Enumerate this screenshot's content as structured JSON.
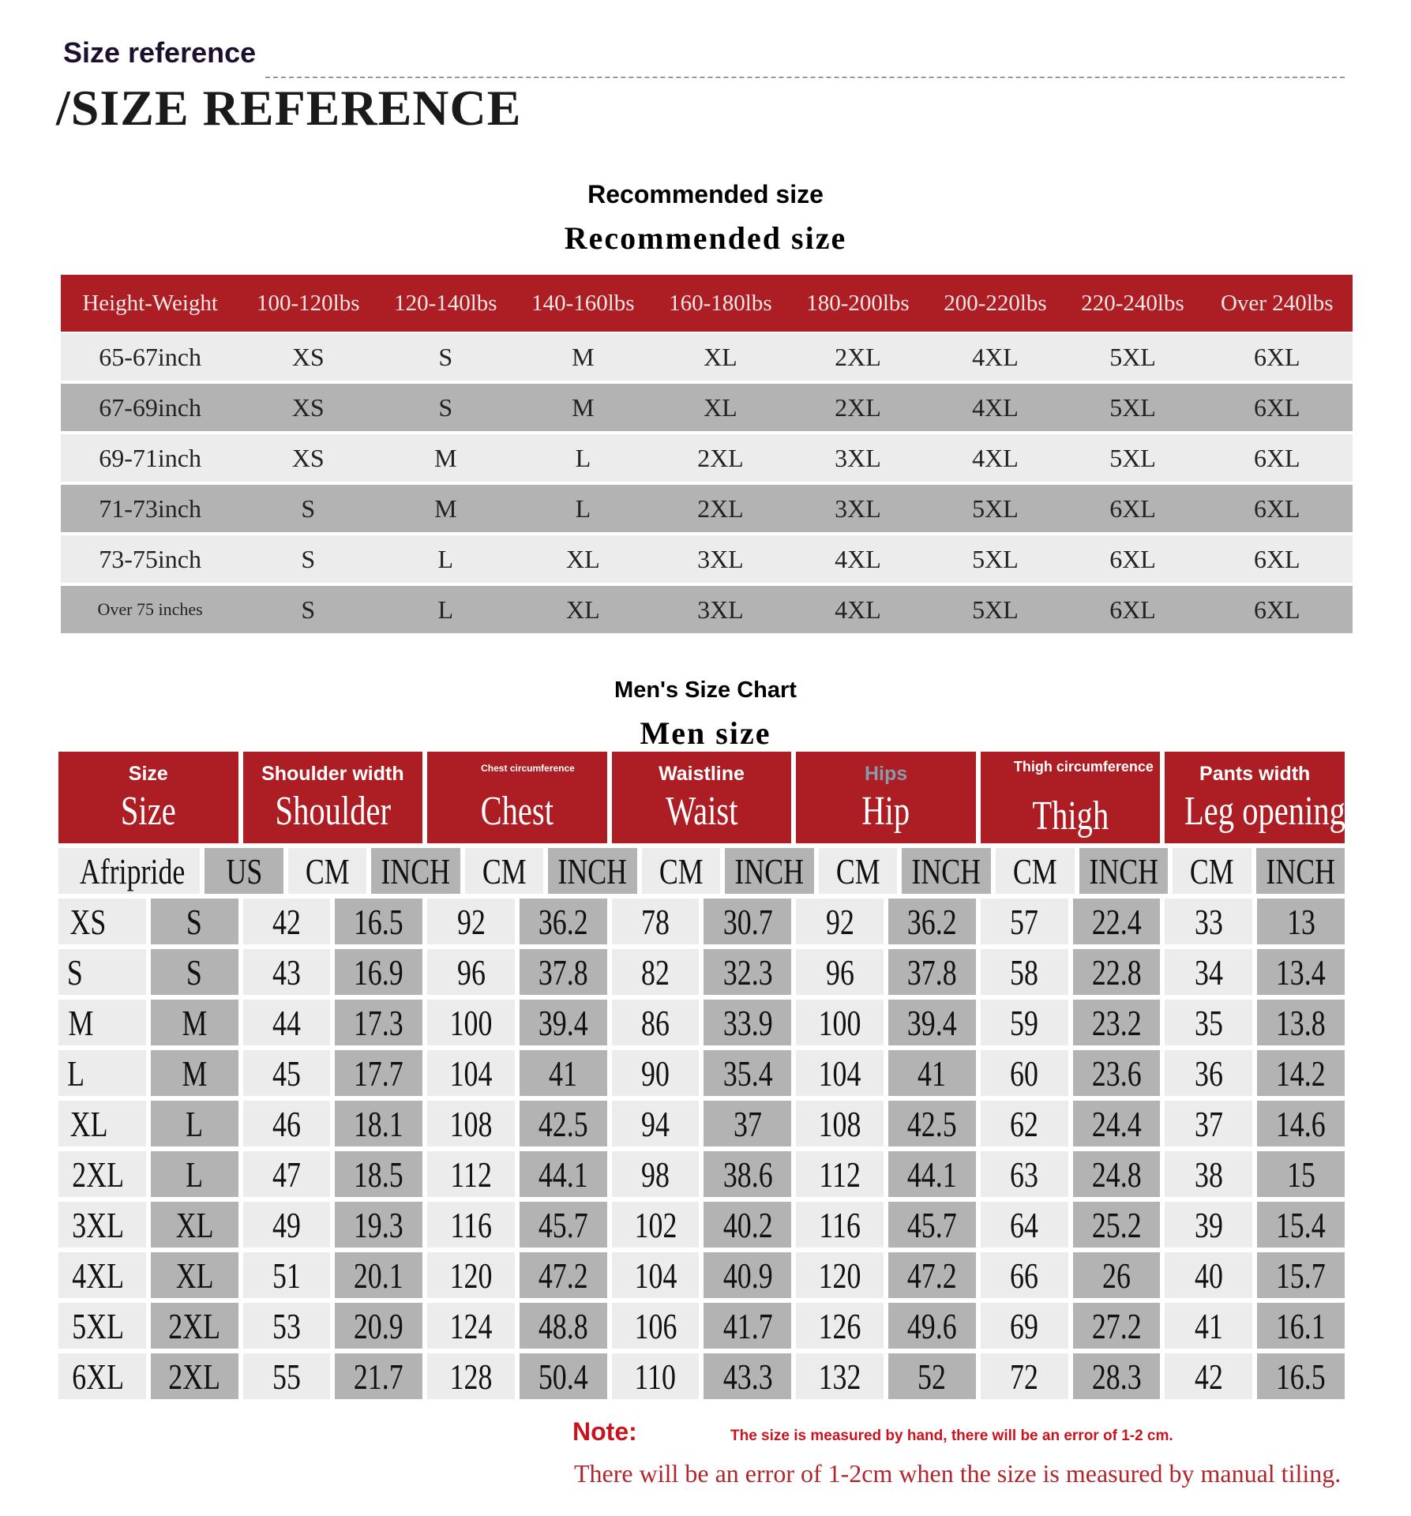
{
  "header": {
    "title_small": "Size reference",
    "title_large": "/SIZE REFERENCE"
  },
  "recommended": {
    "title_sans": "Recommended size",
    "title_serif": "Recommended size",
    "columns": [
      "Height-Weight",
      "100-120lbs",
      "120-140lbs",
      "140-160lbs",
      "160-180lbs",
      "180-200lbs",
      "200-220lbs",
      "220-240lbs",
      "Over  240lbs"
    ],
    "rows": [
      [
        "65-67inch",
        "XS",
        "S",
        "M",
        "XL",
        "2XL",
        "4XL",
        "5XL",
        "6XL"
      ],
      [
        "67-69inch",
        "XS",
        "S",
        "M",
        "XL",
        "2XL",
        "4XL",
        "5XL",
        "6XL"
      ],
      [
        "69-71inch",
        "XS",
        "M",
        "L",
        "2XL",
        "3XL",
        "4XL",
        "5XL",
        "6XL"
      ],
      [
        "71-73inch",
        "S",
        "M",
        "L",
        "2XL",
        "3XL",
        "5XL",
        "6XL",
        "6XL"
      ],
      [
        "73-75inch",
        "S",
        "L",
        "XL",
        "3XL",
        "4XL",
        "5XL",
        "6XL",
        "6XL"
      ],
      [
        "Over  75  inches",
        "S",
        "L",
        "XL",
        "3XL",
        "4XL",
        "5XL",
        "6XL",
        "6XL"
      ]
    ]
  },
  "men": {
    "title_sans": "Men's Size Chart",
    "title_serif": "Men size",
    "headers": [
      {
        "top": "Size",
        "big": "Size"
      },
      {
        "top": "Shoulder width",
        "big": "Shoulder"
      },
      {
        "top": "Chest circumference",
        "big": "Chest"
      },
      {
        "top": "Waistline",
        "big": "Waist"
      },
      {
        "top": "Hips",
        "big": "Hip"
      },
      {
        "top": "Thigh circumference",
        "big": "Thigh"
      },
      {
        "top": "Pants width",
        "big": "Leg opening"
      }
    ],
    "subheaders": [
      "Afripride",
      "US",
      "CM",
      "INCH",
      "CM",
      "INCH",
      "CM",
      "INCH",
      "CM",
      "INCH",
      "CM",
      "INCH",
      "CM",
      "INCH"
    ],
    "rows": [
      [
        "XS",
        "S",
        "42",
        "16.5",
        "92",
        "36.2",
        "78",
        "30.7",
        "92",
        "36.2",
        "57",
        "22.4",
        "33",
        "13"
      ],
      [
        "S",
        "S",
        "43",
        "16.9",
        "96",
        "37.8",
        "82",
        "32.3",
        "96",
        "37.8",
        "58",
        "22.8",
        "34",
        "13.4"
      ],
      [
        "M",
        "M",
        "44",
        "17.3",
        "100",
        "39.4",
        "86",
        "33.9",
        "100",
        "39.4",
        "59",
        "23.2",
        "35",
        "13.8"
      ],
      [
        "L",
        "M",
        "45",
        "17.7",
        "104",
        "41",
        "90",
        "35.4",
        "104",
        "41",
        "60",
        "23.6",
        "36",
        "14.2"
      ],
      [
        "XL",
        "L",
        "46",
        "18.1",
        "108",
        "42.5",
        "94",
        "37",
        "108",
        "42.5",
        "62",
        "24.4",
        "37",
        "14.6"
      ],
      [
        "2XL",
        "L",
        "47",
        "18.5",
        "112",
        "44.1",
        "98",
        "38.6",
        "112",
        "44.1",
        "63",
        "24.8",
        "38",
        "15"
      ],
      [
        "3XL",
        "XL",
        "49",
        "19.3",
        "116",
        "45.7",
        "102",
        "40.2",
        "116",
        "45.7",
        "64",
        "25.2",
        "39",
        "15.4"
      ],
      [
        "4XL",
        "XL",
        "51",
        "20.1",
        "120",
        "47.2",
        "104",
        "40.9",
        "120",
        "47.2",
        "66",
        "26",
        "40",
        "15.7"
      ],
      [
        "5XL",
        "2XL",
        "53",
        "20.9",
        "124",
        "48.8",
        "106",
        "41.7",
        "126",
        "49.6",
        "69",
        "27.2",
        "41",
        "16.1"
      ],
      [
        "6XL",
        "2XL",
        "55",
        "21.7",
        "128",
        "50.4",
        "110",
        "43.3",
        "132",
        "52",
        "72",
        "28.3",
        "42",
        "16.5"
      ]
    ]
  },
  "note": {
    "label": "Note:",
    "text_small": "The size is measured by hand, there will be an error of 1-2 cm.",
    "text_large": "There will be an error of 1-2cm when the size is measured by manual tiling."
  },
  "colors": {
    "header_red": "#ac1e24",
    "row_light": "#ececec",
    "row_dark": "#b3b3b3",
    "note_red": "#c8141e"
  }
}
